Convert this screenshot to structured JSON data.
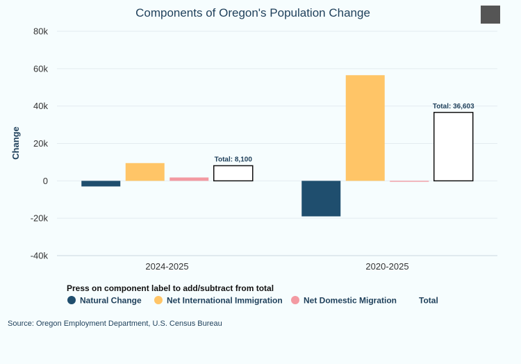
{
  "chart_data": {
    "type": "bar",
    "title": "Components of Oregon's Population Change",
    "ylabel": "Change",
    "xlabel": "",
    "ylim": [
      -40000,
      80000
    ],
    "yticks": [
      -40000,
      -20000,
      0,
      20000,
      40000,
      60000,
      80000
    ],
    "ytick_labels": [
      "-40k",
      "-20k",
      "0",
      "20k",
      "40k",
      "60k",
      "80k"
    ],
    "categories": [
      "2024-2025",
      "2020-2025"
    ],
    "series": [
      {
        "name": "Natural Change",
        "color": "#1f4e6e",
        "values": [
          -3000,
          -19000
        ]
      },
      {
        "name": "Net International Immigration",
        "color": "#ffc567",
        "values": [
          9500,
          56500
        ]
      },
      {
        "name": "Net Domestic Migration",
        "color": "#f39aa2",
        "values": [
          1800,
          -500
        ]
      },
      {
        "name": "Total",
        "color": "#ffffff",
        "values": [
          8100,
          36603
        ]
      }
    ],
    "total_labels": [
      "Total: 8,100",
      "Total: 36,603"
    ],
    "legend_title": "Press on component label to add/subtract from total",
    "legend_position": "bottom-left",
    "grid": true
  },
  "source": "Source: Oregon Employment Department, U.S. Census Bureau",
  "menu_icon": "hamburger-menu-icon"
}
